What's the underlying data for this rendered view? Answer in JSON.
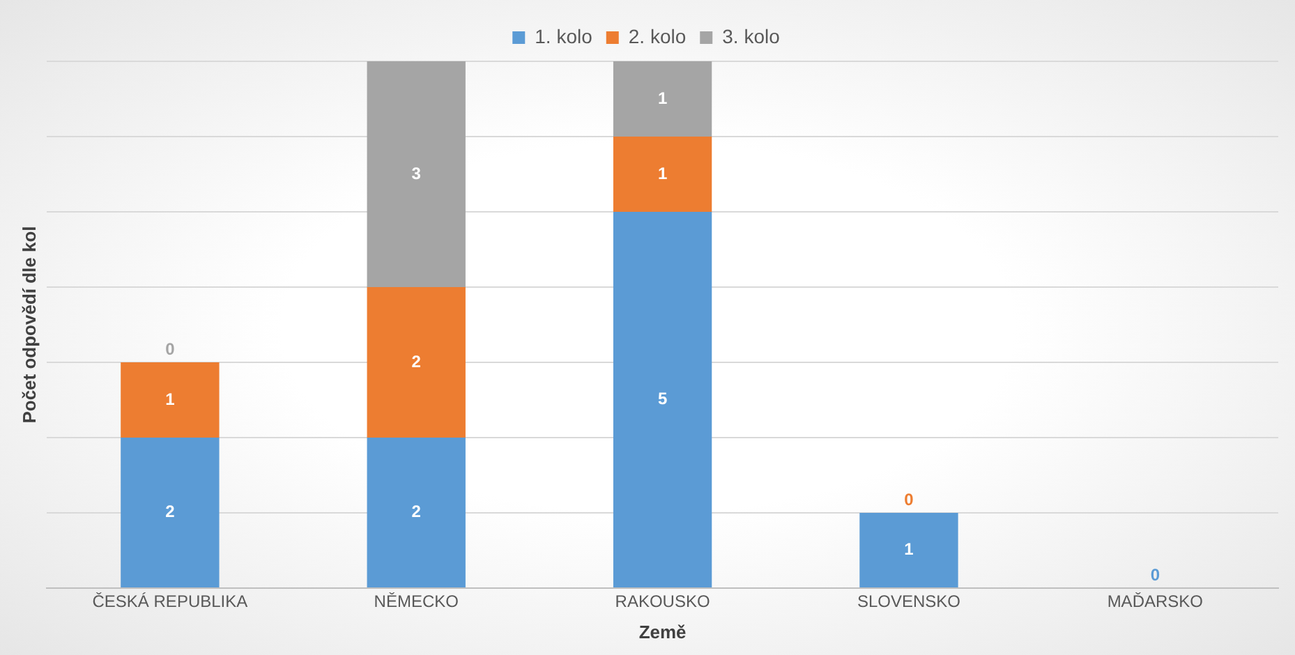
{
  "chart_data": {
    "type": "bar",
    "stacked": true,
    "xlabel": "Země",
    "ylabel": "Počet odpovědí dle kol",
    "categories": [
      "ČESKÁ REPUBLIKA",
      "NĚMECKO",
      "RAKOUSKO",
      "SLOVENSKO",
      "MAĎARSKO"
    ],
    "series": [
      {
        "name": "1. kolo",
        "color": "#5b9bd5",
        "values": [
          2,
          2,
          5,
          1,
          0
        ]
      },
      {
        "name": "2. kolo",
        "color": "#ed7d31",
        "values": [
          1,
          2,
          1,
          0,
          null
        ]
      },
      {
        "name": "3. kolo",
        "color": "#a5a5a5",
        "values": [
          0,
          3,
          1,
          null,
          null
        ]
      }
    ],
    "ylim": [
      0,
      7
    ],
    "yticks": [
      {
        "value": 0,
        "label": null
      },
      {
        "value": 1,
        "label": null
      },
      {
        "value": 2,
        "label": null
      },
      {
        "value": 3,
        "label": null
      },
      {
        "value": 4,
        "label": null
      },
      {
        "value": 5,
        "label": null
      },
      {
        "value": 6,
        "label": null
      },
      {
        "value": 7,
        "label": null
      }
    ],
    "tick_labels": "x",
    "grid": "y",
    "legend": "top",
    "data_labels": true
  }
}
